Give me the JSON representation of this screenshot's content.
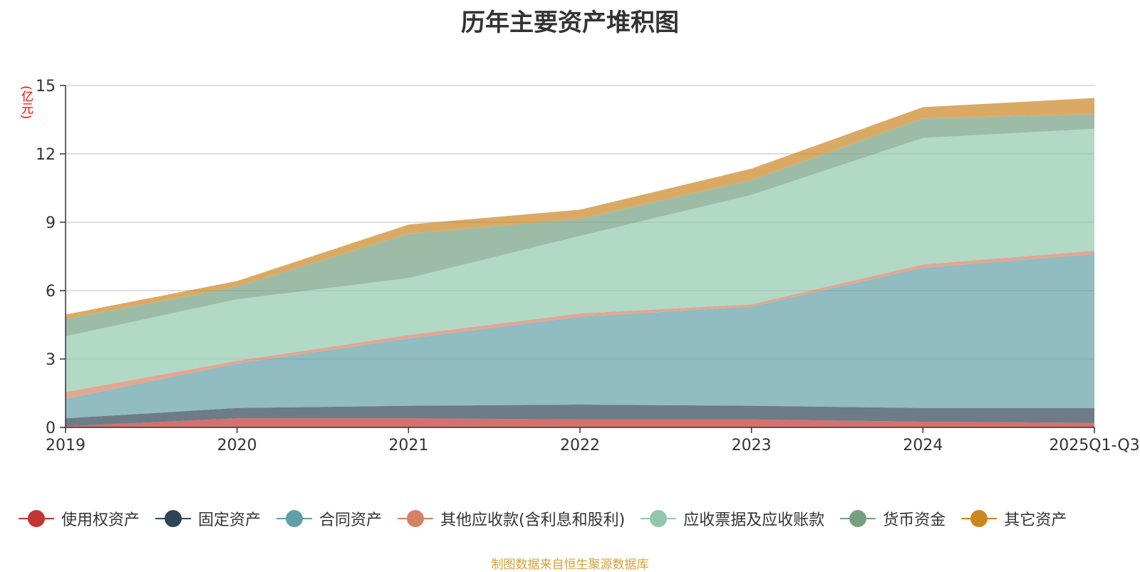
{
  "chart_data": {
    "type": "area",
    "stacked": true,
    "title": "历年主要资产堆积图",
    "unit_label": "(亿元)",
    "x": [
      "2019",
      "2020",
      "2021",
      "2022",
      "2023",
      "2024",
      "2025Q1-Q3"
    ],
    "ylim": [
      0,
      15
    ],
    "yticks": [
      0,
      3,
      6,
      9,
      12,
      15
    ],
    "grid": true,
    "legend_position": "bottom",
    "series": [
      {
        "name": "使用权资产",
        "color": "#c23531",
        "values": [
          0.05,
          0.4,
          0.4,
          0.35,
          0.35,
          0.25,
          0.2
        ]
      },
      {
        "name": "固定资产",
        "color": "#2f4554",
        "values": [
          0.35,
          0.45,
          0.55,
          0.65,
          0.6,
          0.6,
          0.65
        ]
      },
      {
        "name": "合同资产",
        "color": "#61a0a8",
        "values": [
          0.85,
          1.95,
          2.95,
          3.85,
          4.35,
          6.15,
          6.75
        ]
      },
      {
        "name": "其他应收款(含利息和股利)",
        "color": "#d48265",
        "values": [
          0.3,
          0.12,
          0.15,
          0.15,
          0.1,
          0.15,
          0.15
        ]
      },
      {
        "name": "应收票据及应收账款",
        "color": "#91c7ae",
        "values": [
          2.45,
          2.7,
          2.5,
          3.4,
          4.8,
          5.55,
          5.35
        ]
      },
      {
        "name": "货币资金",
        "color": "#749f83",
        "values": [
          0.75,
          0.55,
          1.95,
          0.75,
          0.65,
          0.85,
          0.65
        ]
      },
      {
        "name": "其它资产",
        "color": "#ca8622",
        "values": [
          0.2,
          0.25,
          0.4,
          0.4,
          0.5,
          0.5,
          0.7
        ]
      }
    ]
  },
  "source_note": "制图数据来自恒生聚源数据库"
}
